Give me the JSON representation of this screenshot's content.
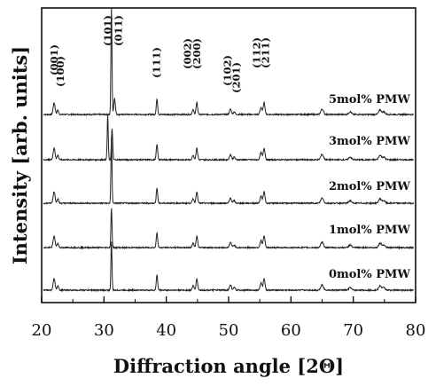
{
  "chart_data": {
    "type": "line",
    "xlabel": "Diffraction angle [2Θ]",
    "ylabel": "Intensity [arb. units]",
    "xlim": [
      20,
      80
    ],
    "x_ticks": [
      "20",
      "30",
      "40",
      "50",
      "60",
      "70",
      "80"
    ],
    "y_ticks_shown": false,
    "grid": false,
    "series": [
      {
        "name": "5mol% PMW"
      },
      {
        "name": "3mol% PMW"
      },
      {
        "name": "2mol% PMW"
      },
      {
        "name": "1mol% PMW"
      },
      {
        "name": "0mol% PMW"
      }
    ],
    "peak_labels": [
      {
        "text": "(001)",
        "x": 22.0
      },
      {
        "text": "(100)",
        "x": 23.0
      },
      {
        "text": "(101)",
        "x": 30.6
      },
      {
        "text": "(011)",
        "x": 32.3
      },
      {
        "text": "(111)",
        "x": 38.4
      },
      {
        "text": "(002)",
        "x": 43.4
      },
      {
        "text": "(200)",
        "x": 44.9
      },
      {
        "text": "(102)",
        "x": 49.8
      },
      {
        "text": "(201)",
        "x": 51.2
      },
      {
        "text": "(112)",
        "x": 54.5
      },
      {
        "text": "(211)",
        "x": 55.9
      }
    ]
  }
}
